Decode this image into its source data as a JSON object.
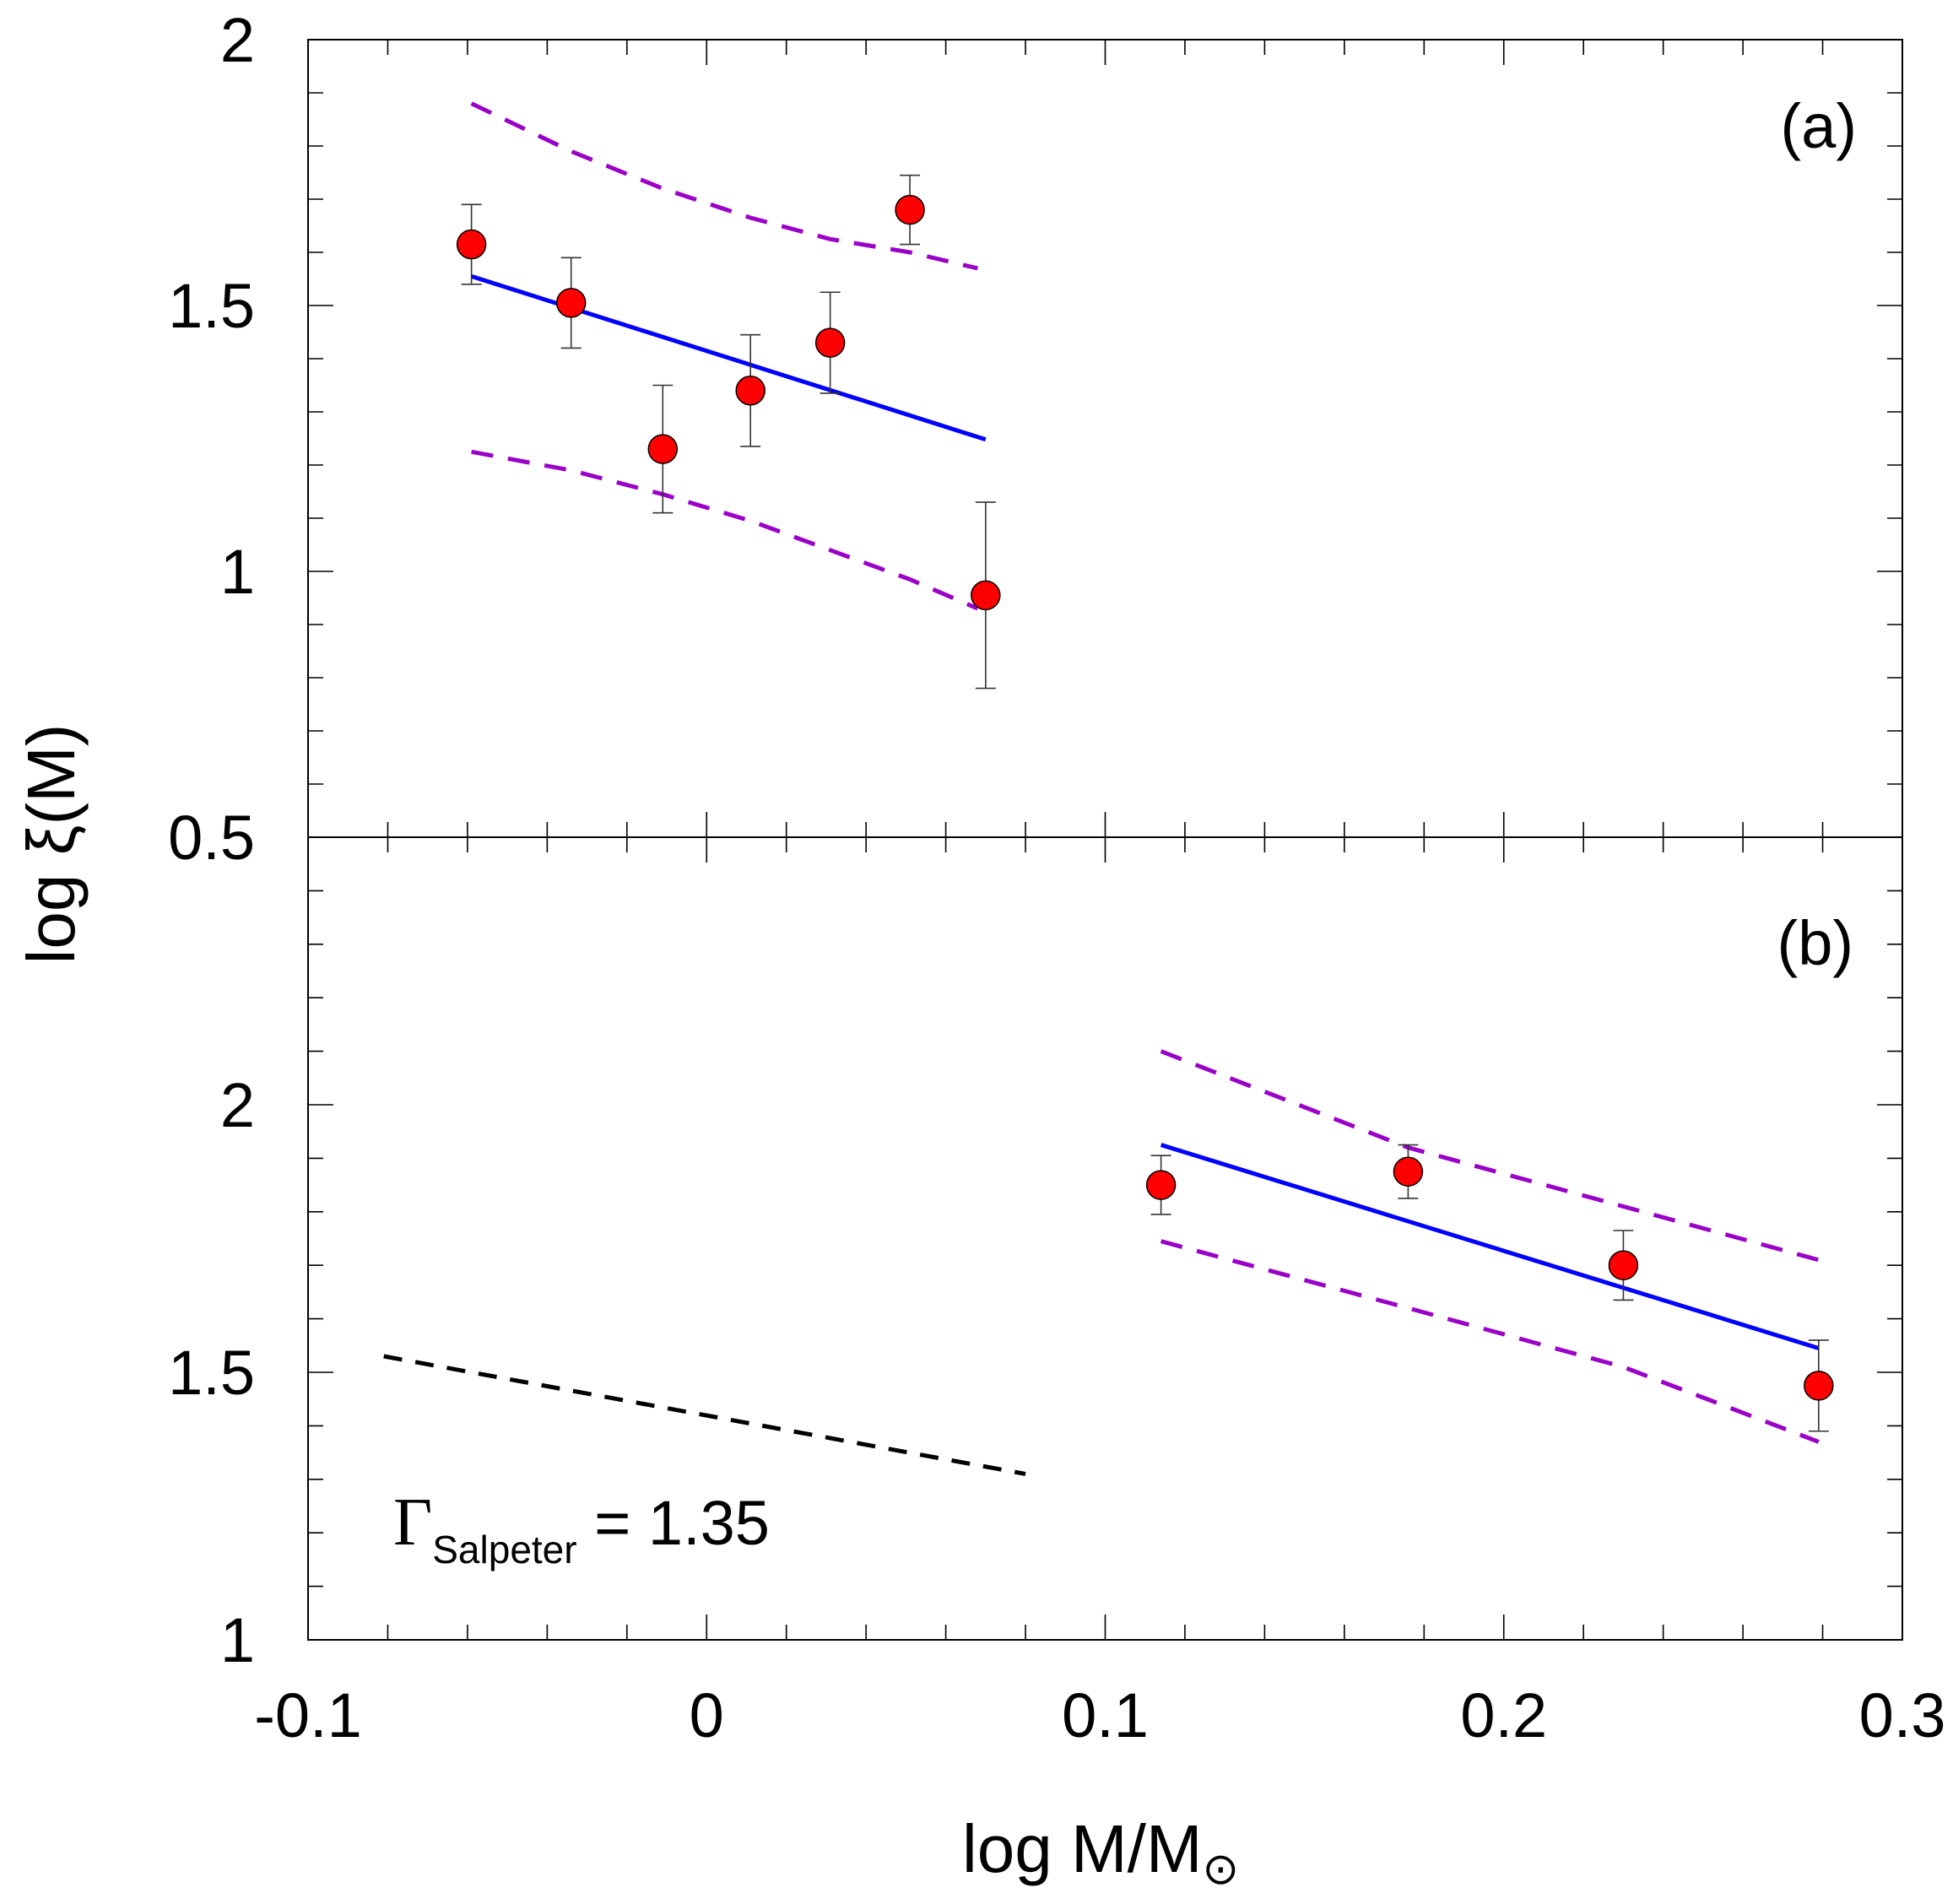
{
  "chart_data": [
    {
      "type": "scatter",
      "panel": "a",
      "panel_label": "(a)",
      "xlim": [
        -0.1,
        0.3
      ],
      "ylim": [
        0.5,
        2
      ],
      "xticks": [
        "-0.1",
        "0",
        "0.1",
        "0.2",
        "0.3"
      ],
      "yticks": [
        "0.5",
        "1",
        "1.5",
        "2"
      ],
      "ytick_values": [
        0.5,
        1,
        1.5,
        2
      ],
      "points": [
        {
          "x": -0.059,
          "y": 1.615,
          "err": 0.075
        },
        {
          "x": -0.034,
          "y": 1.505,
          "err": 0.085
        },
        {
          "x": -0.011,
          "y": 1.23,
          "err": 0.12
        },
        {
          "x": 0.011,
          "y": 1.34,
          "err": 0.105
        },
        {
          "x": 0.031,
          "y": 1.43,
          "err": 0.095
        },
        {
          "x": 0.051,
          "y": 1.68,
          "err": 0.065
        },
        {
          "x": 0.07,
          "y": 0.955,
          "err": 0.175
        }
      ],
      "fit_line": {
        "x": [
          -0.059,
          0.07
        ],
        "y": [
          1.555,
          1.248
        ]
      },
      "upper_band": {
        "x": [
          -0.059,
          -0.034,
          -0.011,
          0.011,
          0.031,
          0.051,
          0.068
        ],
        "y": [
          1.88,
          1.79,
          1.72,
          1.665,
          1.625,
          1.6,
          1.57
        ]
      },
      "lower_band": {
        "x": [
          -0.059,
          -0.034,
          -0.011,
          0.011,
          0.031,
          0.051,
          0.068
        ],
        "y": [
          1.225,
          1.19,
          1.145,
          1.095,
          1.04,
          0.985,
          0.93
        ]
      }
    },
    {
      "type": "scatter",
      "panel": "b",
      "panel_label": "(b)",
      "xlim": [
        -0.1,
        0.3
      ],
      "ylim": [
        1,
        2.5
      ],
      "xticks": [
        "-0.1",
        "0",
        "0.1",
        "0.2",
        "0.3"
      ],
      "yticks": [
        "1",
        "1.5",
        "2"
      ],
      "ytick_values": [
        1,
        1.5,
        2
      ],
      "points": [
        {
          "x": 0.114,
          "y": 1.85,
          "err": 0.055
        },
        {
          "x": 0.176,
          "y": 1.875,
          "err": 0.05
        },
        {
          "x": 0.23,
          "y": 1.7,
          "err": 0.065
        },
        {
          "x": 0.279,
          "y": 1.475,
          "err": 0.085
        }
      ],
      "fit_line": {
        "x": [
          0.114,
          0.279
        ],
        "y": [
          1.925,
          1.545
        ]
      },
      "upper_band": {
        "x": [
          0.114,
          0.176,
          0.23,
          0.279
        ],
        "y": [
          2.1,
          1.92,
          1.81,
          1.71
        ]
      },
      "lower_band": {
        "x": [
          0.114,
          0.176,
          0.23,
          0.279
        ],
        "y": [
          1.745,
          1.62,
          1.51,
          1.37
        ]
      },
      "salpeter_line": {
        "x": [
          -0.081,
          0.08
        ],
        "y": [
          1.53,
          1.31
        ]
      }
    }
  ],
  "xlabel": "log M/M",
  "xlabel_symbol": "⊙",
  "ylabel": "log ξ(M)",
  "annotation": {
    "gamma": "Γ",
    "subscript": "Salpeter",
    "value": " = 1.35"
  },
  "colors": {
    "points": "#ff0000",
    "fit": "#0000ff",
    "bands": "#9a00c8",
    "salpeter": "#000000",
    "axes": "#000000"
  }
}
